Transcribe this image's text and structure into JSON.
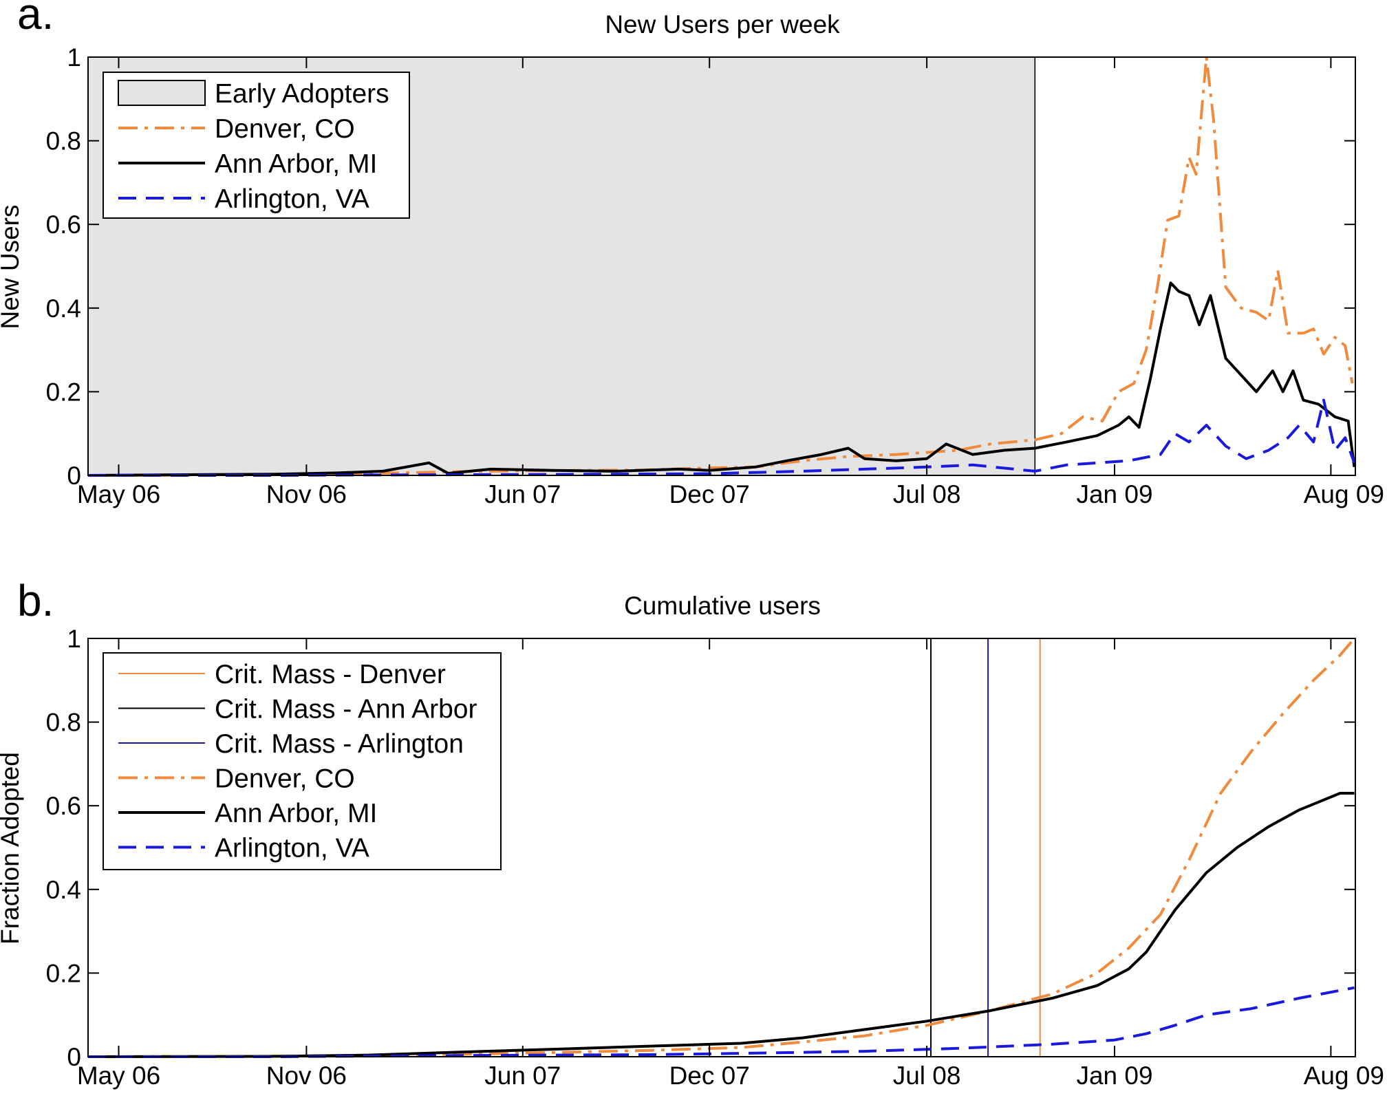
{
  "chart_data": [
    {
      "panel_label": "a.",
      "type": "line",
      "title": "New Users per week",
      "xlabel": "",
      "ylabel": "New Users",
      "xlim": [
        "2006-04-01",
        "2009-08-25"
      ],
      "ylim": [
        0,
        1
      ],
      "yticks": [
        "0",
        "0.2",
        "0.4",
        "0.6",
        "0.8",
        "1"
      ],
      "xticks": [
        {
          "date": "2006-05-01",
          "label": "May 06"
        },
        {
          "date": "2006-11-01",
          "label": "Nov 06"
        },
        {
          "date": "2007-06-01",
          "label": "Jun 07"
        },
        {
          "date": "2007-12-01",
          "label": "Dec 07"
        },
        {
          "date": "2008-07-01",
          "label": "Jul 08"
        },
        {
          "date": "2009-01-01",
          "label": "Jan 09"
        },
        {
          "date": "2009-08-01",
          "label": "Aug 09"
        }
      ],
      "shaded_region": {
        "label": "Early Adopters",
        "start": "2006-04-01",
        "end": "2008-10-15",
        "color": "#e4e4e4"
      },
      "legend": {
        "position": "top-left",
        "entries": [
          "Early Adopters",
          "Denver, CO",
          "Ann Arbor, MI",
          "Arlington, VA"
        ]
      },
      "series": [
        {
          "name": "Denver, CO",
          "color": "#f08a3c",
          "style": "dash-dot",
          "points": [
            [
              "2006-04-01",
              0
            ],
            [
              "2006-06-01",
              0
            ],
            [
              "2006-08-01",
              0.001
            ],
            [
              "2006-10-01",
              0.002
            ],
            [
              "2006-12-01",
              0.004
            ],
            [
              "2007-02-01",
              0.006
            ],
            [
              "2007-04-01",
              0.009
            ],
            [
              "2007-06-01",
              0.011
            ],
            [
              "2007-08-01",
              0.012
            ],
            [
              "2007-10-01",
              0.013
            ],
            [
              "2007-12-01",
              0.018
            ],
            [
              "2008-01-15",
              0.02
            ],
            [
              "2008-03-01",
              0.035
            ],
            [
              "2008-04-15",
              0.045
            ],
            [
              "2008-06-01",
              0.05
            ],
            [
              "2008-07-01",
              0.055
            ],
            [
              "2008-08-01",
              0.06
            ],
            [
              "2008-09-01",
              0.075
            ],
            [
              "2008-10-15",
              0.085
            ],
            [
              "2008-11-10",
              0.1
            ],
            [
              "2008-12-01",
              0.14
            ],
            [
              "2008-12-20",
              0.13
            ],
            [
              "2009-01-05",
              0.2
            ],
            [
              "2009-01-20",
              0.22
            ],
            [
              "2009-02-01",
              0.3
            ],
            [
              "2009-02-12",
              0.45
            ],
            [
              "2009-02-22",
              0.61
            ],
            [
              "2009-03-05",
              0.62
            ],
            [
              "2009-03-15",
              0.76
            ],
            [
              "2009-03-22",
              0.72
            ],
            [
              "2009-04-01",
              1.0
            ],
            [
              "2009-04-08",
              0.85
            ],
            [
              "2009-04-20",
              0.45
            ],
            [
              "2009-05-05",
              0.4
            ],
            [
              "2009-05-20",
              0.39
            ],
            [
              "2009-06-01",
              0.37
            ],
            [
              "2009-06-10",
              0.49
            ],
            [
              "2009-06-20",
              0.34
            ],
            [
              "2009-07-05",
              0.34
            ],
            [
              "2009-07-15",
              0.35
            ],
            [
              "2009-07-25",
              0.29
            ],
            [
              "2009-08-05",
              0.33
            ],
            [
              "2009-08-15",
              0.31
            ],
            [
              "2009-08-22",
              0.22
            ]
          ]
        },
        {
          "name": "Ann Arbor, MI",
          "color": "#000000",
          "style": "solid",
          "points": [
            [
              "2006-04-01",
              0
            ],
            [
              "2006-06-01",
              0.001
            ],
            [
              "2006-08-01",
              0.002
            ],
            [
              "2006-10-01",
              0.003
            ],
            [
              "2006-12-01",
              0.006
            ],
            [
              "2007-01-15",
              0.01
            ],
            [
              "2007-03-01",
              0.03
            ],
            [
              "2007-03-20",
              0.005
            ],
            [
              "2007-05-01",
              0.015
            ],
            [
              "2007-07-01",
              0.012
            ],
            [
              "2007-09-01",
              0.01
            ],
            [
              "2007-11-01",
              0.015
            ],
            [
              "2007-12-01",
              0.012
            ],
            [
              "2008-01-15",
              0.02
            ],
            [
              "2008-02-15",
              0.035
            ],
            [
              "2008-03-20",
              0.05
            ],
            [
              "2008-04-15",
              0.065
            ],
            [
              "2008-05-01",
              0.04
            ],
            [
              "2008-06-01",
              0.035
            ],
            [
              "2008-07-01",
              0.04
            ],
            [
              "2008-07-20",
              0.075
            ],
            [
              "2008-08-15",
              0.05
            ],
            [
              "2008-09-15",
              0.06
            ],
            [
              "2008-10-15",
              0.065
            ],
            [
              "2008-11-15",
              0.08
            ],
            [
              "2008-12-15",
              0.095
            ],
            [
              "2009-01-05",
              0.12
            ],
            [
              "2009-01-15",
              0.14
            ],
            [
              "2009-01-25",
              0.115
            ],
            [
              "2009-02-05",
              0.23
            ],
            [
              "2009-02-15",
              0.35
            ],
            [
              "2009-02-25",
              0.46
            ],
            [
              "2009-03-05",
              0.44
            ],
            [
              "2009-03-15",
              0.43
            ],
            [
              "2009-03-25",
              0.36
            ],
            [
              "2009-04-05",
              0.43
            ],
            [
              "2009-04-20",
              0.28
            ],
            [
              "2009-05-05",
              0.24
            ],
            [
              "2009-05-20",
              0.2
            ],
            [
              "2009-06-05",
              0.25
            ],
            [
              "2009-06-15",
              0.2
            ],
            [
              "2009-06-25",
              0.25
            ],
            [
              "2009-07-05",
              0.18
            ],
            [
              "2009-07-20",
              0.17
            ],
            [
              "2009-08-05",
              0.14
            ],
            [
              "2009-08-18",
              0.13
            ],
            [
              "2009-08-24",
              0.02
            ]
          ]
        },
        {
          "name": "Arlington, VA",
          "color": "#1a1adc",
          "style": "dashed",
          "points": [
            [
              "2006-04-01",
              0
            ],
            [
              "2006-10-01",
              0
            ],
            [
              "2007-01-01",
              0.001
            ],
            [
              "2007-06-01",
              0.002
            ],
            [
              "2007-12-01",
              0.004
            ],
            [
              "2008-03-01",
              0.01
            ],
            [
              "2008-05-01",
              0.015
            ],
            [
              "2008-07-01",
              0.02
            ],
            [
              "2008-08-15",
              0.025
            ],
            [
              "2008-10-15",
              0.01
            ],
            [
              "2008-11-15",
              0.025
            ],
            [
              "2008-12-15",
              0.03
            ],
            [
              "2009-01-15",
              0.035
            ],
            [
              "2009-02-15",
              0.05
            ],
            [
              "2009-03-01",
              0.1
            ],
            [
              "2009-03-15",
              0.08
            ],
            [
              "2009-04-01",
              0.12
            ],
            [
              "2009-04-20",
              0.07
            ],
            [
              "2009-05-10",
              0.04
            ],
            [
              "2009-06-01",
              0.06
            ],
            [
              "2009-06-20",
              0.09
            ],
            [
              "2009-07-01",
              0.12
            ],
            [
              "2009-07-15",
              0.08
            ],
            [
              "2009-07-25",
              0.18
            ],
            [
              "2009-08-05",
              0.06
            ],
            [
              "2009-08-15",
              0.09
            ],
            [
              "2009-08-24",
              0.03
            ]
          ]
        }
      ]
    },
    {
      "panel_label": "b.",
      "type": "line",
      "title": "Cumulative users",
      "xlabel": "",
      "ylabel": "Fraction Adopted",
      "xlim": [
        "2006-04-01",
        "2009-08-25"
      ],
      "ylim": [
        0,
        1
      ],
      "yticks": [
        "0",
        "0.2",
        "0.4",
        "0.6",
        "0.8",
        "1"
      ],
      "xticks": [
        {
          "date": "2006-05-01",
          "label": "May 06"
        },
        {
          "date": "2006-11-01",
          "label": "Nov 06"
        },
        {
          "date": "2007-06-01",
          "label": "Jun 07"
        },
        {
          "date": "2007-12-01",
          "label": "Dec 07"
        },
        {
          "date": "2008-07-01",
          "label": "Jul 08"
        },
        {
          "date": "2009-01-01",
          "label": "Jan 09"
        },
        {
          "date": "2009-08-01",
          "label": "Aug 09"
        }
      ],
      "vertical_lines": [
        {
          "name": "Crit. Mass - Denver",
          "date": "2008-10-20",
          "color": "#f08a3c"
        },
        {
          "name": "Crit. Mass - Ann Arbor",
          "date": "2008-07-05",
          "color": "#000000"
        },
        {
          "name": "Crit. Mass - Arlington",
          "date": "2008-08-30",
          "color": "#1a1a9a"
        }
      ],
      "legend": {
        "position": "top-left",
        "entries": [
          "Crit. Mass - Denver",
          "Crit. Mass - Ann Arbor",
          "Crit. Mass - Arlington",
          "Denver, CO",
          "Ann Arbor, MI",
          "Arlington, VA"
        ]
      },
      "series": [
        {
          "name": "Denver, CO",
          "color": "#f08a3c",
          "style": "dash-dot",
          "points": [
            [
              "2006-04-01",
              0
            ],
            [
              "2006-10-01",
              0.001
            ],
            [
              "2007-01-01",
              0.003
            ],
            [
              "2007-04-01",
              0.006
            ],
            [
              "2007-07-01",
              0.01
            ],
            [
              "2007-10-01",
              0.015
            ],
            [
              "2008-01-01",
              0.022
            ],
            [
              "2008-03-01",
              0.035
            ],
            [
              "2008-05-01",
              0.05
            ],
            [
              "2008-07-01",
              0.075
            ],
            [
              "2008-09-01",
              0.11
            ],
            [
              "2008-11-01",
              0.15
            ],
            [
              "2008-12-15",
              0.2
            ],
            [
              "2009-01-15",
              0.26
            ],
            [
              "2009-02-15",
              0.34
            ],
            [
              "2009-03-15",
              0.47
            ],
            [
              "2009-04-15",
              0.63
            ],
            [
              "2009-05-15",
              0.73
            ],
            [
              "2009-06-15",
              0.82
            ],
            [
              "2009-07-15",
              0.9
            ],
            [
              "2009-08-10",
              0.96
            ],
            [
              "2009-08-24",
              1.0
            ]
          ]
        },
        {
          "name": "Ann Arbor, MI",
          "color": "#000000",
          "style": "solid",
          "points": [
            [
              "2006-04-01",
              0
            ],
            [
              "2006-10-01",
              0.001
            ],
            [
              "2007-01-01",
              0.004
            ],
            [
              "2007-04-01",
              0.011
            ],
            [
              "2007-07-01",
              0.018
            ],
            [
              "2007-10-01",
              0.025
            ],
            [
              "2008-01-01",
              0.032
            ],
            [
              "2008-03-01",
              0.045
            ],
            [
              "2008-05-01",
              0.065
            ],
            [
              "2008-07-01",
              0.085
            ],
            [
              "2008-09-01",
              0.11
            ],
            [
              "2008-11-01",
              0.14
            ],
            [
              "2008-12-15",
              0.17
            ],
            [
              "2009-01-15",
              0.21
            ],
            [
              "2009-02-01",
              0.25
            ],
            [
              "2009-03-01",
              0.35
            ],
            [
              "2009-04-01",
              0.44
            ],
            [
              "2009-05-01",
              0.5
            ],
            [
              "2009-06-01",
              0.55
            ],
            [
              "2009-07-01",
              0.59
            ],
            [
              "2009-08-10",
              0.63
            ],
            [
              "2009-08-24",
              0.63
            ]
          ]
        },
        {
          "name": "Arlington, VA",
          "color": "#1a1adc",
          "style": "dashed",
          "points": [
            [
              "2006-04-01",
              0
            ],
            [
              "2006-10-01",
              0
            ],
            [
              "2007-04-01",
              0.003
            ],
            [
              "2007-10-01",
              0.005
            ],
            [
              "2008-01-01",
              0.008
            ],
            [
              "2008-05-01",
              0.013
            ],
            [
              "2008-08-01",
              0.02
            ],
            [
              "2008-11-01",
              0.03
            ],
            [
              "2009-01-01",
              0.04
            ],
            [
              "2009-02-01",
              0.055
            ],
            [
              "2009-03-01",
              0.075
            ],
            [
              "2009-04-01",
              0.1
            ],
            [
              "2009-05-15",
              0.115
            ],
            [
              "2009-07-01",
              0.14
            ],
            [
              "2009-08-24",
              0.165
            ]
          ]
        }
      ]
    }
  ]
}
